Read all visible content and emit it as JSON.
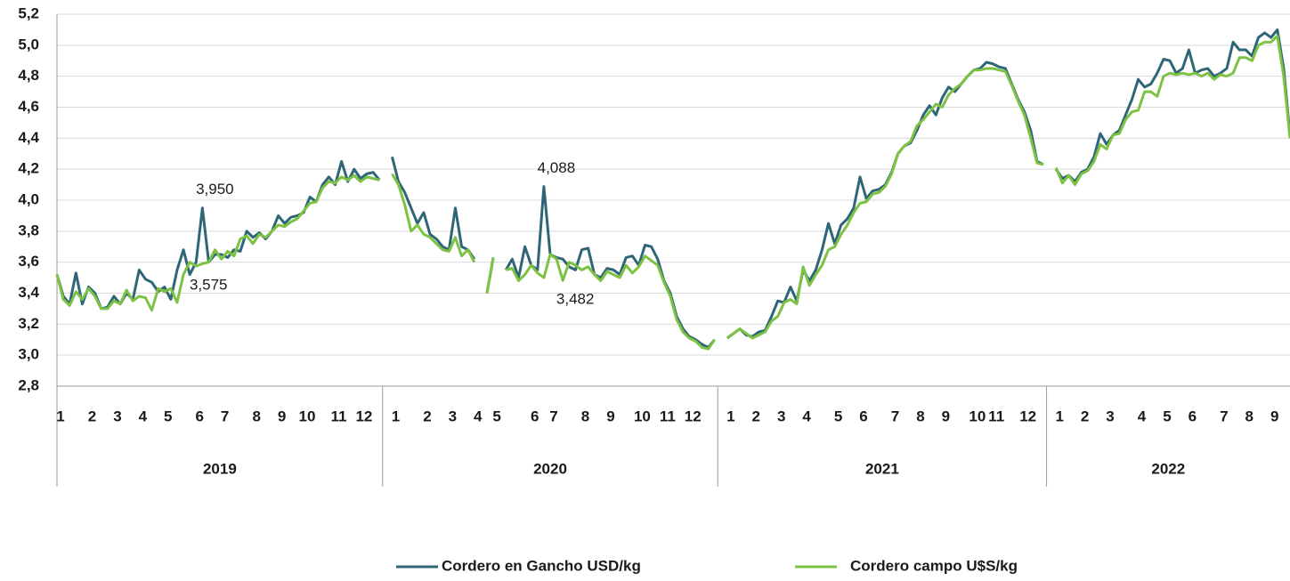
{
  "chart_data": {
    "type": "line",
    "categories": [
      "1",
      null,
      null,
      null,
      null,
      "2",
      null,
      null,
      null,
      "3",
      null,
      null,
      null,
      "4",
      null,
      null,
      null,
      "5",
      null,
      null,
      null,
      null,
      "6",
      null,
      null,
      null,
      "7",
      null,
      null,
      null,
      null,
      "8",
      null,
      null,
      null,
      "9",
      null,
      null,
      null,
      "10",
      null,
      null,
      null,
      null,
      "11",
      null,
      null,
      null,
      "12",
      null,
      null,
      null,
      null,
      "1",
      null,
      null,
      null,
      null,
      "2",
      null,
      null,
      null,
      "3",
      null,
      null,
      null,
      "4",
      null,
      null,
      "5",
      null,
      null,
      null,
      null,
      null,
      "6",
      null,
      null,
      "7",
      null,
      null,
      null,
      null,
      "8",
      null,
      null,
      null,
      "9",
      null,
      null,
      null,
      null,
      "10",
      null,
      null,
      null,
      "11",
      null,
      null,
      null,
      "12",
      null,
      null,
      null,
      null,
      null,
      "1",
      null,
      null,
      null,
      "2",
      null,
      null,
      null,
      "3",
      null,
      null,
      null,
      "4",
      null,
      null,
      null,
      null,
      "5",
      null,
      null,
      null,
      "6",
      null,
      null,
      null,
      null,
      "7",
      null,
      null,
      null,
      "8",
      null,
      null,
      null,
      "9",
      null,
      null,
      null,
      null,
      "10",
      null,
      null,
      "11",
      null,
      null,
      null,
      null,
      "12",
      null,
      null,
      null,
      null,
      "1",
      null,
      null,
      null,
      "2",
      null,
      null,
      null,
      "3",
      null,
      null,
      null,
      null,
      "4",
      null,
      null,
      null,
      "5",
      null,
      null,
      null,
      "6",
      null,
      null,
      null,
      null,
      "7",
      null,
      null,
      null,
      "8",
      null,
      null,
      null,
      "9",
      null,
      null,
      null
    ],
    "groups": [
      {
        "label": "2019",
        "span": 52
      },
      {
        "label": "2020",
        "span": 53
      },
      {
        "label": "2021",
        "span": 52
      },
      {
        "label": "2022",
        "span": 39
      }
    ],
    "series": [
      {
        "name": "Cordero en Gancho USD/kg",
        "color": "#2e6678",
        "values": [
          3.52,
          3.38,
          3.33,
          3.53,
          3.33,
          3.44,
          3.4,
          3.3,
          3.31,
          3.38,
          3.33,
          3.4,
          3.36,
          3.55,
          3.49,
          3.47,
          3.41,
          3.44,
          3.36,
          3.55,
          3.68,
          3.52,
          3.6,
          3.95,
          3.6,
          3.65,
          3.65,
          3.63,
          3.68,
          3.67,
          3.8,
          3.76,
          3.79,
          3.75,
          3.8,
          3.9,
          3.85,
          3.89,
          3.9,
          3.92,
          4.02,
          3.99,
          4.1,
          4.15,
          4.1,
          4.25,
          4.12,
          4.2,
          4.14,
          4.17,
          4.18,
          4.13,
          null,
          4.28,
          4.12,
          4.05,
          3.95,
          3.85,
          3.92,
          3.78,
          3.75,
          3.7,
          3.68,
          3.95,
          3.7,
          3.68,
          3.62,
          null,
          3.4,
          3.63,
          null,
          3.55,
          3.62,
          3.5,
          3.7,
          3.58,
          3.55,
          4.088,
          3.65,
          3.63,
          3.62,
          3.57,
          3.55,
          3.68,
          3.69,
          3.52,
          3.5,
          3.56,
          3.55,
          3.52,
          3.63,
          3.64,
          3.58,
          3.71,
          3.7,
          3.62,
          3.48,
          3.4,
          3.25,
          3.17,
          3.12,
          3.1,
          3.07,
          3.05,
          3.1,
          null,
          3.11,
          3.14,
          3.17,
          3.13,
          3.12,
          3.15,
          3.16,
          3.25,
          3.35,
          3.34,
          3.44,
          3.35,
          3.55,
          3.48,
          3.55,
          3.68,
          3.85,
          3.72,
          3.84,
          3.88,
          3.95,
          4.15,
          4.01,
          4.06,
          4.07,
          4.1,
          4.18,
          4.3,
          4.35,
          4.37,
          4.45,
          4.55,
          4.61,
          4.55,
          4.66,
          4.73,
          4.7,
          4.75,
          4.8,
          4.84,
          4.85,
          4.89,
          4.88,
          4.86,
          4.85,
          4.75,
          4.65,
          4.57,
          4.45,
          4.25,
          4.23,
          null,
          4.2,
          4.14,
          4.16,
          4.12,
          4.18,
          4.2,
          4.28,
          4.43,
          4.36,
          4.42,
          4.45,
          4.55,
          4.65,
          4.78,
          4.73,
          4.75,
          4.82,
          4.91,
          4.9,
          4.82,
          4.85,
          4.97,
          4.82,
          4.84,
          4.85,
          4.8,
          4.82,
          4.85,
          5.02,
          4.97,
          4.97,
          4.93,
          5.05,
          5.08,
          5.05,
          5.1,
          4.85,
          4.42
        ],
        "value_labels": {
          "23": "3,950",
          "77": "4,088"
        }
      },
      {
        "name": "Cordero campo U$S/kg",
        "color": "#7dc242",
        "values": [
          3.52,
          3.36,
          3.32,
          3.41,
          3.36,
          3.43,
          3.38,
          3.3,
          3.3,
          3.35,
          3.33,
          3.42,
          3.35,
          3.38,
          3.37,
          3.29,
          3.43,
          3.41,
          3.43,
          3.34,
          3.52,
          3.6,
          3.575,
          3.59,
          3.6,
          3.68,
          3.62,
          3.67,
          3.64,
          3.75,
          3.77,
          3.72,
          3.78,
          3.76,
          3.8,
          3.84,
          3.83,
          3.86,
          3.88,
          3.93,
          3.98,
          3.99,
          4.08,
          4.12,
          4.11,
          4.15,
          4.13,
          4.16,
          4.12,
          4.15,
          4.14,
          4.13,
          null,
          4.17,
          4.1,
          3.97,
          3.8,
          3.84,
          3.78,
          3.76,
          3.72,
          3.68,
          3.67,
          3.76,
          3.64,
          3.68,
          3.6,
          null,
          3.4,
          3.63,
          null,
          3.55,
          3.56,
          3.48,
          3.52,
          3.58,
          3.53,
          3.5,
          3.65,
          3.62,
          3.482,
          3.6,
          3.58,
          3.55,
          3.57,
          3.52,
          3.48,
          3.54,
          3.52,
          3.5,
          3.58,
          3.53,
          3.57,
          3.64,
          3.61,
          3.58,
          3.47,
          3.38,
          3.23,
          3.15,
          3.11,
          3.09,
          3.05,
          3.04,
          3.1,
          null,
          3.11,
          3.14,
          3.17,
          3.14,
          3.11,
          3.13,
          3.15,
          3.22,
          3.25,
          3.34,
          3.36,
          3.33,
          3.57,
          3.45,
          3.52,
          3.58,
          3.68,
          3.7,
          3.78,
          3.84,
          3.92,
          3.98,
          3.99,
          4.04,
          4.05,
          4.09,
          4.17,
          4.3,
          4.35,
          4.38,
          4.48,
          4.52,
          4.57,
          4.62,
          4.6,
          4.68,
          4.72,
          4.75,
          4.8,
          4.84,
          4.84,
          4.85,
          4.85,
          4.84,
          4.83,
          4.74,
          4.64,
          4.55,
          4.4,
          4.24,
          4.23,
          null,
          4.21,
          4.11,
          4.16,
          4.1,
          4.17,
          4.19,
          4.25,
          4.36,
          4.33,
          4.42,
          4.43,
          4.52,
          4.57,
          4.58,
          4.7,
          4.7,
          4.67,
          4.8,
          4.82,
          4.81,
          4.82,
          4.81,
          4.82,
          4.8,
          4.82,
          4.78,
          4.81,
          4.8,
          4.82,
          4.92,
          4.92,
          4.9,
          5.0,
          5.02,
          5.02,
          5.06,
          4.8,
          4.4
        ],
        "value_labels": {
          "22": "3,575",
          "80": "3,482"
        }
      }
    ],
    "ylim": [
      2.8,
      5.2
    ],
    "yticks": [
      {
        "value": 2.8,
        "label": "2,8"
      },
      {
        "value": 3.0,
        "label": "3,0"
      },
      {
        "value": 3.2,
        "label": "3,2"
      },
      {
        "value": 3.4,
        "label": "3,4"
      },
      {
        "value": 3.6,
        "label": "3,6"
      },
      {
        "value": 3.8,
        "label": "3,8"
      },
      {
        "value": 4.0,
        "label": "4,0"
      },
      {
        "value": 4.2,
        "label": "4,2"
      },
      {
        "value": 4.4,
        "label": "4,4"
      },
      {
        "value": 4.6,
        "label": "4,6"
      },
      {
        "value": 4.8,
        "label": "4,8"
      },
      {
        "value": 5.0,
        "label": "5,0"
      },
      {
        "value": 5.2,
        "label": "5,2"
      }
    ],
    "grid": true,
    "legend": "bottom"
  }
}
